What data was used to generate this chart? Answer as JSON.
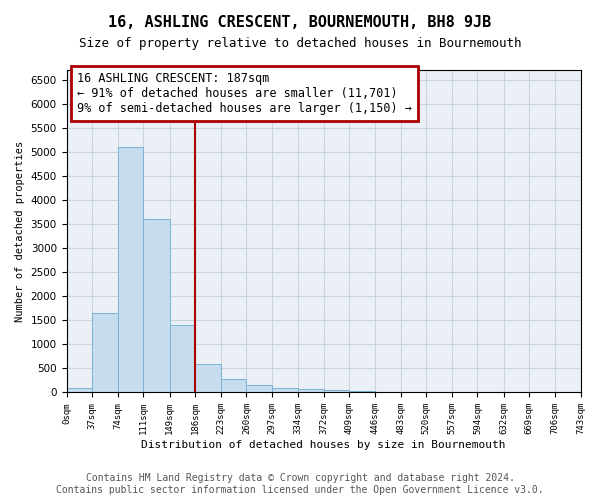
{
  "title": "16, ASHLING CRESCENT, BOURNEMOUTH, BH8 9JB",
  "subtitle": "Size of property relative to detached houses in Bournemouth",
  "xlabel": "Distribution of detached houses by size in Bournemouth",
  "ylabel": "Number of detached properties",
  "footnote1": "Contains HM Land Registry data © Crown copyright and database right 2024.",
  "footnote2": "Contains public sector information licensed under the Open Government Licence v3.0.",
  "annotation_line1": "16 ASHLING CRESCENT: 187sqm",
  "annotation_line2": "← 91% of detached houses are smaller (11,701)",
  "annotation_line3": "9% of semi-detached houses are larger (1,150) →",
  "bin_edges": [
    0,
    37,
    74,
    111,
    149,
    186,
    223,
    260,
    297,
    334,
    372,
    409,
    446,
    483,
    520,
    557,
    594,
    632,
    669,
    706,
    743
  ],
  "bin_labels": [
    "0sqm",
    "37sqm",
    "74sqm",
    "111sqm",
    "149sqm",
    "186sqm",
    "223sqm",
    "260sqm",
    "297sqm",
    "334sqm",
    "372sqm",
    "409sqm",
    "446sqm",
    "483sqm",
    "520sqm",
    "557sqm",
    "594sqm",
    "632sqm",
    "669sqm",
    "706sqm",
    "743sqm"
  ],
  "bar_heights": [
    100,
    1650,
    5100,
    3600,
    1400,
    600,
    280,
    150,
    100,
    75,
    50,
    30,
    15,
    10,
    5,
    3,
    2,
    1,
    1,
    0
  ],
  "bar_color": "#c6ddef",
  "bar_edge_color": "#7ab3d4",
  "vline_color": "#aa0000",
  "vline_x": 186,
  "annotation_box_color": "#aa0000",
  "ylim": [
    0,
    6700
  ],
  "yticks": [
    0,
    500,
    1000,
    1500,
    2000,
    2500,
    3000,
    3500,
    4000,
    4500,
    5000,
    5500,
    6000,
    6500
  ],
  "grid_color": "#c8d4e0",
  "bg_color": "#eaf0f6",
  "title_fontsize": 11,
  "subtitle_fontsize": 9,
  "annotation_fontsize": 8.5,
  "footer_fontsize": 7
}
